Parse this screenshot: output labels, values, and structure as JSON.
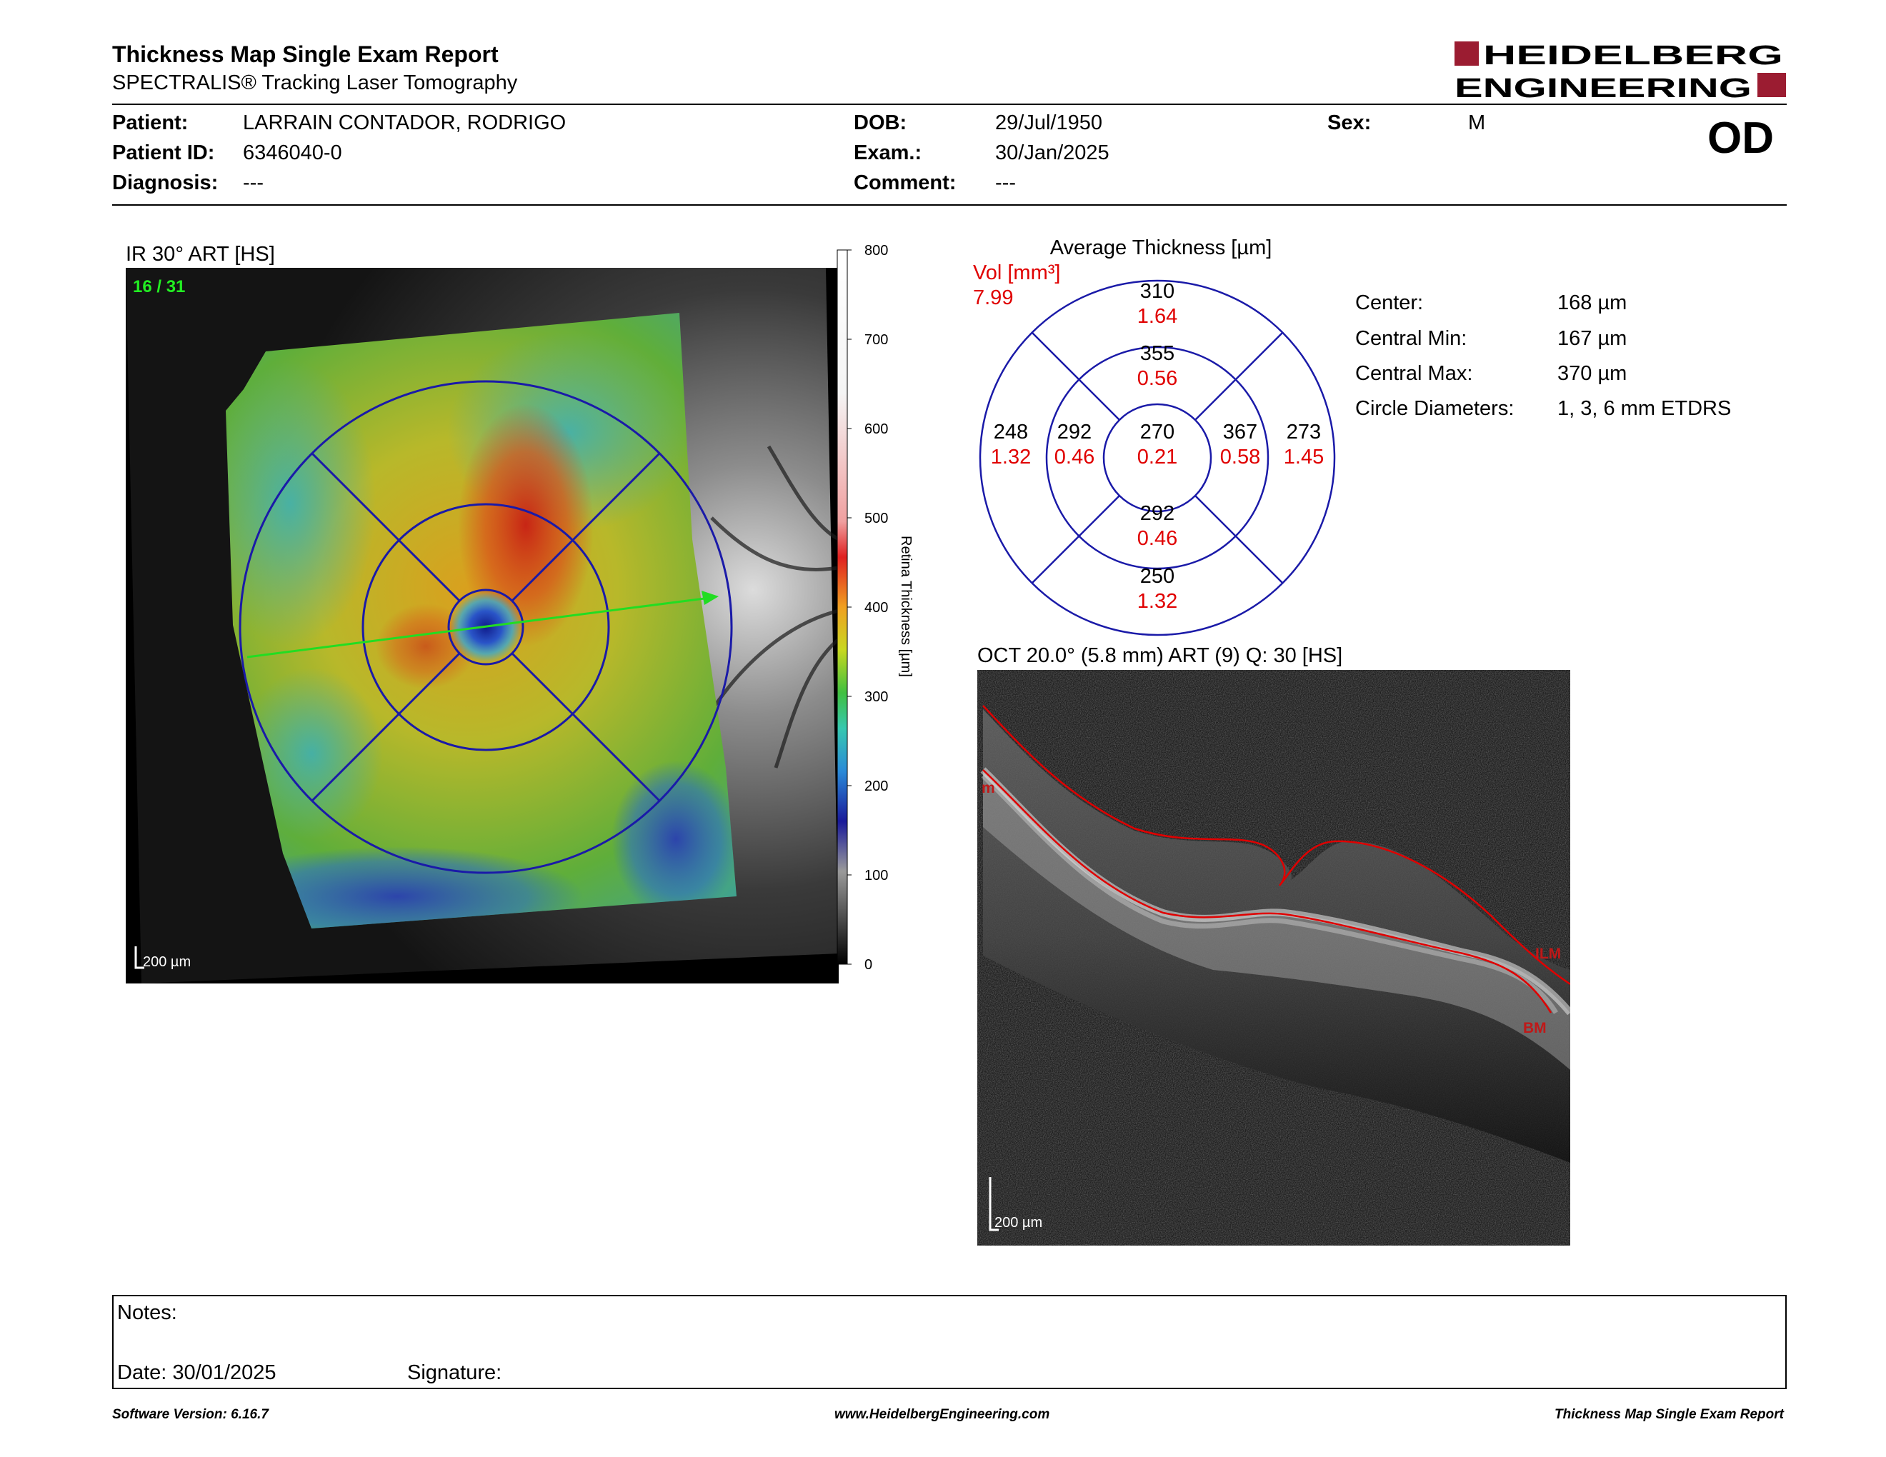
{
  "report": {
    "title": "Thickness Map Single Exam Report",
    "subtitle": "SPECTRALIS® Tracking Laser Tomography",
    "logo_text": [
      "HEIDELBERG",
      "ENGINEERING"
    ],
    "brand_color": "#9b1c31",
    "eye": "OD"
  },
  "patient": {
    "patient_label": "Patient:",
    "patient_value": "LARRAIN CONTADOR, RODRIGO",
    "id_label": "Patient ID:",
    "id_value": "6346040-0",
    "diagnosis_label": "Diagnosis:",
    "diagnosis_value": "---",
    "dob_label": "DOB:",
    "dob_value": "29/Jul/1950",
    "exam_label": "Exam.:",
    "exam_value": "30/Jan/2025",
    "comment_label": "Comment:",
    "comment_value": "---",
    "sex_label": "Sex:",
    "sex_value": "M"
  },
  "ir_image": {
    "title": "IR 30° ART [HS]",
    "frame": "16 / 31",
    "scale_bar": "200 µm",
    "colorbar_label": "Retina  Thickness [µm]",
    "colorbar_ticks": [
      "800",
      "700",
      "600",
      "500",
      "400",
      "300",
      "200",
      "100",
      "0"
    ]
  },
  "etdrs": {
    "title": "Average Thickness [µm]",
    "vol_label": "Vol [mm³]",
    "vol_total": "7.99",
    "center": {
      "thickness": "270",
      "volume": "0.21"
    },
    "inner": {
      "superior": {
        "thickness": "355",
        "volume": "0.56"
      },
      "nasal": {
        "thickness": "367",
        "volume": "0.58"
      },
      "inferior": {
        "thickness": "292",
        "volume": "0.46"
      },
      "temporal": {
        "thickness": "292",
        "volume": "0.46"
      }
    },
    "outer": {
      "superior": {
        "thickness": "310",
        "volume": "1.64"
      },
      "nasal": {
        "thickness": "273",
        "volume": "1.45"
      },
      "inferior": {
        "thickness": "250",
        "volume": "1.32"
      },
      "temporal": {
        "thickness": "248",
        "volume": "1.32"
      }
    },
    "line_color": "#1a1aa8",
    "volume_color": "#e00000"
  },
  "stats": {
    "center_label": "Center:",
    "center_value": "168 µm",
    "min_label": "Central Min:",
    "min_value": "167 µm",
    "max_label": "Central Max:",
    "max_value": "370 µm",
    "diam_label": "Circle Diameters:",
    "diam_value": "1, 3, 6 mm ETDRS"
  },
  "oct": {
    "title": "OCT 20.0° (5.8 mm) ART (9) Q: 30 [HS]",
    "ilm_label": "ILM",
    "bm_label": "BM",
    "side_label": "m",
    "scale_bar": "200 µm"
  },
  "notes": {
    "notes_label": "Notes:",
    "date_label": "Date: 30/01/2025",
    "signature_label": "Signature:"
  },
  "footer": {
    "software": "Software Version: 6.16.7",
    "website": "www.HeidelbergEngineering.com",
    "report": "Thickness Map Single Exam Report"
  }
}
